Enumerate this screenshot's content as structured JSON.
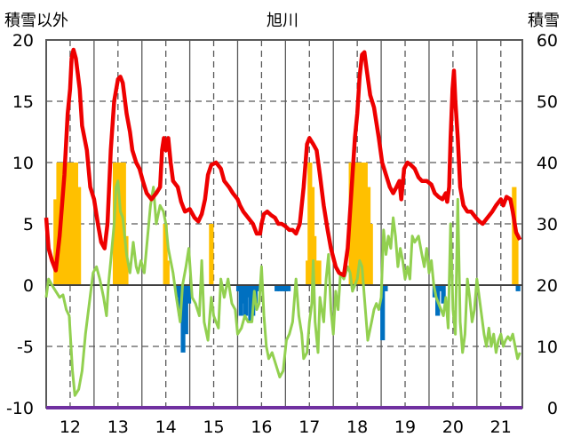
{
  "chart_data": {
    "type": "combo",
    "title": "旭川",
    "left_axis_label": "積雪以外",
    "right_axis_label": "積雪",
    "y_left": {
      "range": [
        -10,
        20
      ],
      "ticks": [
        "20",
        "15",
        "10",
        "5",
        "0",
        "-5",
        "-10"
      ]
    },
    "y_right": {
      "range": [
        0,
        60
      ],
      "ticks": [
        "60",
        "50",
        "40",
        "30",
        "20",
        "10",
        "0"
      ]
    },
    "x_range": [
      11.5,
      21.45
    ],
    "x_ticks": [
      {
        "label": "12",
        "x": 12
      },
      {
        "label": "13",
        "x": 13
      },
      {
        "label": "14",
        "x": 14
      },
      {
        "label": "15",
        "x": 15
      },
      {
        "label": "16",
        "x": 16
      },
      {
        "label": "17",
        "x": 17
      },
      {
        "label": "18",
        "x": 18
      },
      {
        "label": "19",
        "x": 19
      },
      {
        "label": "20",
        "x": 20
      },
      {
        "label": "21",
        "x": 21
      }
    ],
    "grid": true,
    "colors": {
      "red_line": "#ee0000",
      "green_line": "#92d050",
      "yellow_bars": "#ffc000",
      "blue_bars": "#0070c0",
      "baseline": "#7030a0",
      "grid": "#595959"
    },
    "red_series": [
      [
        11.5,
        5.5
      ],
      [
        11.55,
        3.0
      ],
      [
        11.62,
        2.0
      ],
      [
        11.7,
        1.2
      ],
      [
        11.78,
        4.0
      ],
      [
        11.88,
        9.0
      ],
      [
        11.95,
        14.0
      ],
      [
        12.0,
        16.0
      ],
      [
        12.03,
        18.5
      ],
      [
        12.07,
        19.2
      ],
      [
        12.12,
        18.5
      ],
      [
        12.2,
        16.0
      ],
      [
        12.25,
        13.0
      ],
      [
        12.35,
        11.0
      ],
      [
        12.42,
        8.0
      ],
      [
        12.5,
        7.0
      ],
      [
        12.58,
        5.0
      ],
      [
        12.65,
        3.5
      ],
      [
        12.72,
        3.0
      ],
      [
        12.78,
        5.0
      ],
      [
        12.85,
        11.0
      ],
      [
        12.92,
        15.0
      ],
      [
        13.0,
        16.8
      ],
      [
        13.05,
        17.0
      ],
      [
        13.1,
        16.5
      ],
      [
        13.18,
        14.0
      ],
      [
        13.25,
        12.5
      ],
      [
        13.3,
        11.0
      ],
      [
        13.38,
        10.0
      ],
      [
        13.45,
        9.5
      ],
      [
        13.52,
        8.5
      ],
      [
        13.6,
        7.5
      ],
      [
        13.7,
        7.0
      ],
      [
        13.8,
        7.5
      ],
      [
        13.88,
        8.0
      ],
      [
        13.92,
        11.0
      ],
      [
        13.96,
        12.0
      ],
      [
        14.0,
        11.0
      ],
      [
        14.05,
        12.0
      ],
      [
        14.1,
        10.0
      ],
      [
        14.15,
        8.5
      ],
      [
        14.25,
        8.0
      ],
      [
        14.32,
        6.8
      ],
      [
        14.4,
        6.0
      ],
      [
        14.5,
        6.2
      ],
      [
        14.6,
        5.5
      ],
      [
        14.68,
        5.2
      ],
      [
        14.75,
        5.8
      ],
      [
        14.82,
        7.0
      ],
      [
        14.88,
        9.0
      ],
      [
        14.95,
        9.8
      ],
      [
        15.05,
        10.0
      ],
      [
        15.15,
        9.5
      ],
      [
        15.22,
        8.5
      ],
      [
        15.32,
        8.0
      ],
      [
        15.4,
        7.5
      ],
      [
        15.5,
        7.0
      ],
      [
        15.55,
        6.5
      ],
      [
        15.62,
        6.0
      ],
      [
        15.72,
        5.5
      ],
      [
        15.82,
        5.0
      ],
      [
        15.9,
        4.2
      ],
      [
        15.97,
        4.2
      ],
      [
        16.0,
        5.0
      ],
      [
        16.05,
        5.8
      ],
      [
        16.12,
        6.0
      ],
      [
        16.2,
        5.7
      ],
      [
        16.28,
        5.5
      ],
      [
        16.35,
        5.0
      ],
      [
        16.42,
        5.0
      ],
      [
        16.5,
        4.8
      ],
      [
        16.58,
        4.5
      ],
      [
        16.65,
        4.5
      ],
      [
        16.72,
        4.2
      ],
      [
        16.8,
        5.0
      ],
      [
        16.88,
        8.0
      ],
      [
        16.95,
        11.5
      ],
      [
        17.0,
        12.0
      ],
      [
        17.08,
        11.5
      ],
      [
        17.15,
        11.0
      ],
      [
        17.22,
        9.0
      ],
      [
        17.3,
        6.5
      ],
      [
        17.38,
        4.5
      ],
      [
        17.45,
        3.0
      ],
      [
        17.55,
        1.5
      ],
      [
        17.62,
        1.0
      ],
      [
        17.72,
        0.8
      ],
      [
        17.8,
        3.0
      ],
      [
        17.9,
        9.0
      ],
      [
        17.95,
        12.0
      ],
      [
        18.0,
        14.0
      ],
      [
        18.05,
        17.0
      ],
      [
        18.1,
        18.8
      ],
      [
        18.15,
        19.0
      ],
      [
        18.2,
        17.5
      ],
      [
        18.27,
        15.5
      ],
      [
        18.35,
        14.5
      ],
      [
        18.45,
        12.0
      ],
      [
        18.52,
        10.0
      ],
      [
        18.6,
        9.0
      ],
      [
        18.68,
        8.0
      ],
      [
        18.75,
        7.5
      ],
      [
        18.82,
        8.0
      ],
      [
        18.88,
        8.5
      ],
      [
        18.92,
        7.0
      ],
      [
        18.98,
        9.5
      ],
      [
        19.05,
        10.0
      ],
      [
        19.12,
        9.8
      ],
      [
        19.2,
        9.5
      ],
      [
        19.28,
        8.8
      ],
      [
        19.35,
        8.5
      ],
      [
        19.45,
        8.5
      ],
      [
        19.55,
        8.2
      ],
      [
        19.62,
        7.5
      ],
      [
        19.7,
        7.2
      ],
      [
        19.78,
        7.0
      ],
      [
        19.85,
        7.5
      ],
      [
        19.88,
        6.8
      ],
      [
        19.92,
        8.0
      ],
      [
        19.95,
        12.0
      ],
      [
        19.99,
        16.0
      ],
      [
        20.02,
        17.5
      ],
      [
        20.05,
        15.0
      ],
      [
        20.1,
        12.0
      ],
      [
        20.15,
        8.0
      ],
      [
        20.22,
        6.5
      ],
      [
        20.3,
        6.0
      ],
      [
        20.38,
        6.0
      ],
      [
        20.48,
        5.5
      ],
      [
        20.55,
        5.2
      ],
      [
        20.62,
        5.0
      ],
      [
        20.72,
        5.5
      ],
      [
        20.82,
        6.0
      ],
      [
        20.9,
        6.5
      ],
      [
        21.0,
        7.0
      ],
      [
        21.05,
        6.5
      ],
      [
        21.12,
        7.2
      ],
      [
        21.2,
        7.0
      ],
      [
        21.25,
        6.0
      ],
      [
        21.32,
        4.3
      ],
      [
        21.4,
        3.7
      ]
    ],
    "green_series": [
      [
        11.5,
        -1.0
      ],
      [
        11.55,
        0.5
      ],
      [
        11.62,
        0.0
      ],
      [
        11.7,
        -0.5
      ],
      [
        11.78,
        -1.0
      ],
      [
        11.85,
        -0.8
      ],
      [
        11.92,
        -2.0
      ],
      [
        11.98,
        -2.5
      ],
      [
        12.05,
        -7.0
      ],
      [
        12.1,
        -9.0
      ],
      [
        12.18,
        -8.5
      ],
      [
        12.25,
        -7.0
      ],
      [
        12.32,
        -4.0
      ],
      [
        12.4,
        -1.5
      ],
      [
        12.48,
        1.0
      ],
      [
        12.55,
        1.5
      ],
      [
        12.62,
        0.5
      ],
      [
        12.7,
        -1.0
      ],
      [
        12.76,
        -2.5
      ],
      [
        12.8,
        0.0
      ],
      [
        12.85,
        2.0
      ],
      [
        12.92,
        5.0
      ],
      [
        12.96,
        8.0
      ],
      [
        13.0,
        8.5
      ],
      [
        13.05,
        6.0
      ],
      [
        13.1,
        5.5
      ],
      [
        13.18,
        2.5
      ],
      [
        13.25,
        1.0
      ],
      [
        13.32,
        3.5
      ],
      [
        13.38,
        1.5
      ],
      [
        13.42,
        1.0
      ],
      [
        13.48,
        2.0
      ],
      [
        13.55,
        1.0
      ],
      [
        13.62,
        4.0
      ],
      [
        13.68,
        6.5
      ],
      [
        13.74,
        8.0
      ],
      [
        13.8,
        5.0
      ],
      [
        13.88,
        6.5
      ],
      [
        13.95,
        6.0
      ],
      [
        14.0,
        5.0
      ],
      [
        14.05,
        3.0
      ],
      [
        14.1,
        2.0
      ],
      [
        14.15,
        1.0
      ],
      [
        14.22,
        -1.0
      ],
      [
        14.3,
        -3.0
      ],
      [
        14.35,
        0.0
      ],
      [
        14.42,
        1.5
      ],
      [
        14.48,
        3.0
      ],
      [
        14.55,
        -1.0
      ],
      [
        14.62,
        -1.5
      ],
      [
        14.7,
        -2.5
      ],
      [
        14.75,
        2.0
      ],
      [
        14.8,
        -3.0
      ],
      [
        14.88,
        -4.5
      ],
      [
        14.95,
        -1.0
      ],
      [
        15.0,
        -2.5
      ],
      [
        15.05,
        -3.0
      ],
      [
        15.1,
        -3.5
      ],
      [
        15.15,
        0.5
      ],
      [
        15.22,
        -1.0
      ],
      [
        15.3,
        0.5
      ],
      [
        15.38,
        -1.5
      ],
      [
        15.45,
        -2.0
      ],
      [
        15.5,
        -4.0
      ],
      [
        15.58,
        -3.5
      ],
      [
        15.65,
        -2.5
      ],
      [
        15.72,
        -3.0
      ],
      [
        15.8,
        -3.0
      ],
      [
        15.85,
        -0.5
      ],
      [
        15.9,
        -2.0
      ],
      [
        15.95,
        -1.5
      ],
      [
        16.0,
        1.5
      ],
      [
        16.05,
        -2.5
      ],
      [
        16.1,
        -5.0
      ],
      [
        16.15,
        -6.0
      ],
      [
        16.22,
        -5.5
      ],
      [
        16.3,
        -6.5
      ],
      [
        16.38,
        -7.5
      ],
      [
        16.45,
        -7.0
      ],
      [
        16.52,
        -4.5
      ],
      [
        16.58,
        -4.0
      ],
      [
        16.65,
        -3.0
      ],
      [
        16.72,
        0.5
      ],
      [
        16.78,
        -2.5
      ],
      [
        16.84,
        -4.0
      ],
      [
        16.88,
        -6.0
      ],
      [
        16.95,
        -5.5
      ],
      [
        17.0,
        -3.0
      ],
      [
        17.05,
        -1.5
      ],
      [
        17.08,
        2.0
      ],
      [
        17.12,
        -3.0
      ],
      [
        17.18,
        -5.5
      ],
      [
        17.22,
        -1.0
      ],
      [
        17.3,
        -3.0
      ],
      [
        17.35,
        0.5
      ],
      [
        17.4,
        2.5
      ],
      [
        17.45,
        -2.0
      ],
      [
        17.5,
        -4.0
      ],
      [
        17.55,
        -0.5
      ],
      [
        17.6,
        -2.0
      ],
      [
        17.65,
        1.0
      ],
      [
        17.72,
        0.5
      ],
      [
        17.8,
        1.5
      ],
      [
        17.85,
        1.0
      ],
      [
        17.9,
        -0.5
      ],
      [
        17.95,
        0.0
      ],
      [
        18.0,
        0.5
      ],
      [
        18.05,
        2.0
      ],
      [
        18.1,
        1.5
      ],
      [
        18.15,
        -1.0
      ],
      [
        18.22,
        -4.5
      ],
      [
        18.3,
        -3.0
      ],
      [
        18.35,
        -2.0
      ],
      [
        18.4,
        -1.5
      ],
      [
        18.45,
        -2.0
      ],
      [
        18.5,
        -1.0
      ],
      [
        18.55,
        4.5
      ],
      [
        18.6,
        2.5
      ],
      [
        18.65,
        4.0
      ],
      [
        18.7,
        3.0
      ],
      [
        18.75,
        5.5
      ],
      [
        18.8,
        4.0
      ],
      [
        18.85,
        1.5
      ],
      [
        18.9,
        3.0
      ],
      [
        18.95,
        2.0
      ],
      [
        19.0,
        0.5
      ],
      [
        19.05,
        1.5
      ],
      [
        19.1,
        0.5
      ],
      [
        19.15,
        4.0
      ],
      [
        19.2,
        3.5
      ],
      [
        19.28,
        4.0
      ],
      [
        19.35,
        2.5
      ],
      [
        19.4,
        1.5
      ],
      [
        19.45,
        3.0
      ],
      [
        19.5,
        1.0
      ],
      [
        19.55,
        2.0
      ],
      [
        19.6,
        0.0
      ],
      [
        19.65,
        -1.0
      ],
      [
        19.7,
        -1.5
      ],
      [
        19.75,
        -2.0
      ],
      [
        19.8,
        -2.5
      ],
      [
        19.85,
        -1.0
      ],
      [
        19.9,
        -3.5
      ],
      [
        19.95,
        5.0
      ],
      [
        20.0,
        -2.0
      ],
      [
        20.05,
        -4.0
      ],
      [
        20.1,
        7.0
      ],
      [
        20.15,
        -3.0
      ],
      [
        20.2,
        -5.5
      ],
      [
        20.25,
        -4.0
      ],
      [
        20.3,
        0.5
      ],
      [
        20.35,
        -1.0
      ],
      [
        20.4,
        -3.0
      ],
      [
        20.45,
        -2.0
      ],
      [
        20.5,
        0.5
      ],
      [
        20.55,
        -1.0
      ],
      [
        20.6,
        -2.5
      ],
      [
        20.65,
        -4.0
      ],
      [
        20.7,
        -5.0
      ],
      [
        20.75,
        -3.5
      ],
      [
        20.8,
        -5.0
      ],
      [
        20.85,
        -4.0
      ],
      [
        20.9,
        -5.5
      ],
      [
        20.95,
        -4.5
      ],
      [
        21.0,
        -4.0
      ],
      [
        21.05,
        -5.0
      ],
      [
        21.1,
        -4.5
      ],
      [
        21.15,
        -4.2
      ],
      [
        21.2,
        -4.5
      ],
      [
        21.25,
        -4.0
      ],
      [
        21.3,
        -5.0
      ],
      [
        21.35,
        -6.0
      ],
      [
        21.4,
        -5.5
      ]
    ],
    "yellow_bars": [
      [
        11.7,
        7
      ],
      [
        11.76,
        10
      ],
      [
        11.82,
        10
      ],
      [
        11.88,
        10
      ],
      [
        11.94,
        10
      ],
      [
        12.0,
        10
      ],
      [
        12.06,
        10
      ],
      [
        12.12,
        10
      ],
      [
        12.18,
        8
      ],
      [
        12.94,
        10
      ],
      [
        13.0,
        10
      ],
      [
        13.06,
        10
      ],
      [
        13.12,
        10
      ],
      [
        13.17,
        4
      ],
      [
        13.99,
        5
      ],
      [
        14.03,
        2
      ],
      [
        14.95,
        5
      ],
      [
        16.97,
        2
      ],
      [
        17.01,
        10
      ],
      [
        17.06,
        8
      ],
      [
        17.1,
        4
      ],
      [
        17.15,
        2
      ],
      [
        17.2,
        2
      ],
      [
        17.87,
        10
      ],
      [
        17.93,
        10
      ],
      [
        17.99,
        10
      ],
      [
        18.05,
        10
      ],
      [
        18.11,
        10
      ],
      [
        18.17,
        10
      ],
      [
        18.23,
        8
      ],
      [
        18.28,
        5
      ],
      [
        21.28,
        8
      ],
      [
        21.32,
        4
      ]
    ],
    "blue_bars": [
      [
        14.24,
        -1.0
      ],
      [
        14.3,
        -2.5
      ],
      [
        14.36,
        -5.5
      ],
      [
        14.42,
        -4.0
      ],
      [
        14.48,
        -1.5
      ],
      [
        15.52,
        -0.5
      ],
      [
        15.57,
        -2.5
      ],
      [
        15.62,
        -1.5
      ],
      [
        15.67,
        -2.5
      ],
      [
        15.72,
        -1.0
      ],
      [
        15.77,
        -3.0
      ],
      [
        15.82,
        -2.5
      ],
      [
        15.87,
        -1.5
      ],
      [
        15.92,
        -0.5
      ],
      [
        16.32,
        -0.5
      ],
      [
        16.38,
        -0.5
      ],
      [
        16.44,
        -0.5
      ],
      [
        16.5,
        -0.5
      ],
      [
        16.56,
        -0.5
      ],
      [
        18.53,
        -4.5
      ],
      [
        18.59,
        -0.5
      ],
      [
        19.62,
        -1.0
      ],
      [
        19.68,
        -2.5
      ],
      [
        19.74,
        -0.5
      ],
      [
        19.8,
        -1.5
      ],
      [
        21.36,
        -0.5
      ]
    ]
  }
}
